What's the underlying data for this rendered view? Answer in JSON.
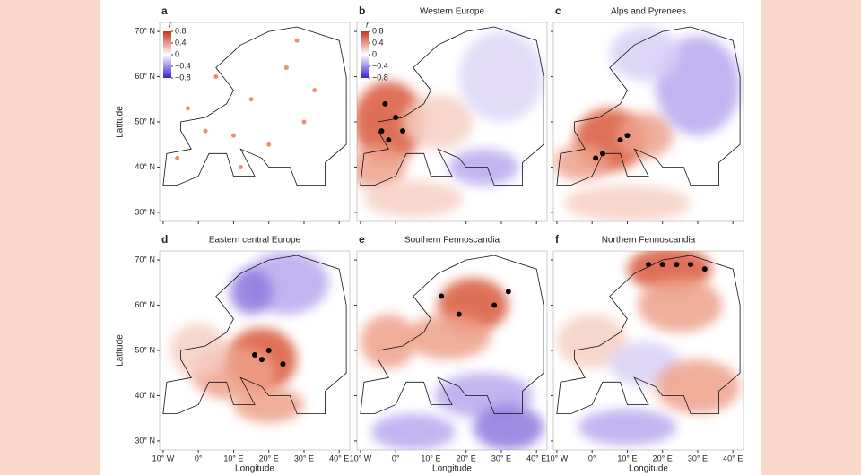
{
  "axes": {
    "xlabel": "Longitude",
    "ylabel": "Latitude",
    "xlim": [
      -11,
      43
    ],
    "ylim": [
      28,
      72
    ],
    "xticks": [
      {
        "value": -10,
        "label": "10° W"
      },
      {
        "value": 0,
        "label": "0°"
      },
      {
        "value": 10,
        "label": "10° E"
      },
      {
        "value": 20,
        "label": "20° E"
      },
      {
        "value": 30,
        "label": "30° E"
      },
      {
        "value": 40,
        "label": "40° E"
      }
    ],
    "yticks": [
      {
        "value": 70,
        "label": "70° N"
      },
      {
        "value": 60,
        "label": "60° N"
      },
      {
        "value": 50,
        "label": "50° N"
      },
      {
        "value": 40,
        "label": "40° N"
      },
      {
        "value": 30,
        "label": "30° N"
      }
    ]
  },
  "colorbar": {
    "label": "r",
    "lim": [
      -0.8,
      0.8
    ],
    "ticks": [
      0.8,
      0.4,
      0,
      {
        "value": -0.4,
        "label": "−0.4"
      },
      {
        "value": -0.8,
        "label": "−0.8"
      }
    ]
  },
  "panels": [
    {
      "letter": "a"
    },
    {
      "letter": "b",
      "title": "Western Europe"
    },
    {
      "letter": "c",
      "title": "Alps and Pyrenees"
    },
    {
      "letter": "d",
      "title": "Eastern central Europe"
    },
    {
      "letter": "e",
      "title": "Southern Fennoscandia"
    },
    {
      "letter": "f",
      "title": "Northern Fennoscandia"
    }
  ]
}
